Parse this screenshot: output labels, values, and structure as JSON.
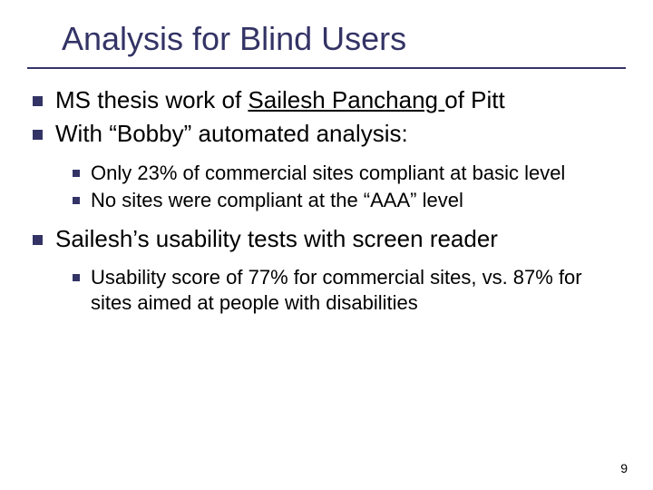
{
  "slide": {
    "title": "Analysis for Blind Users",
    "page_number": "9",
    "colors": {
      "accent": "#333366",
      "text": "#000000",
      "background": "#ffffff"
    },
    "typography": {
      "title_fontsize": 36,
      "body_fontsize": 26,
      "sub_fontsize": 22,
      "pagenum_fontsize": 14,
      "font_family": "Verdana"
    },
    "bullets": [
      {
        "text_before": "MS thesis work of ",
        "link_text": "Sailesh Panchang ",
        "text_after": "of Pitt"
      },
      {
        "text": "With “Bobby” automated analysis:",
        "children": [
          {
            "text": "Only 23% of commercial sites compliant at basic level"
          },
          {
            "text": "No sites were compliant at the “AAA” level"
          }
        ]
      },
      {
        "text": "Sailesh’s usability tests with screen reader",
        "children": [
          {
            "text": "Usability score of 77% for commercial sites, vs. 87% for sites aimed at people with disabilities"
          }
        ]
      }
    ]
  }
}
